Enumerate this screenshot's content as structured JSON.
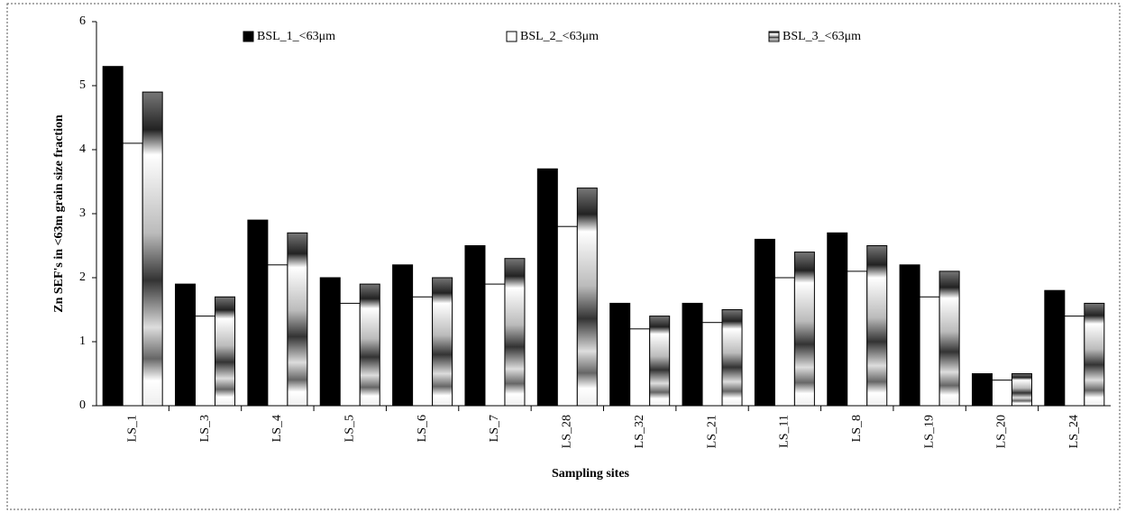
{
  "chart_data": {
    "type": "bar",
    "y_label": "Zn SEF's in <63m grain size fraction",
    "x_label": "Sampling sites",
    "categories": [
      "LS_1",
      "LS_3",
      "LS_4",
      "LS_5",
      "LS_6",
      "LS_7",
      "LS_28",
      "LS_32",
      "LS_21",
      "LS_11",
      "LS_8",
      "LS_19",
      "LS_20",
      "LS_24"
    ],
    "series": [
      {
        "name": "BSL_1_<63μm",
        "color": "#000000",
        "values": [
          5.3,
          1.9,
          2.9,
          2.0,
          2.2,
          2.5,
          3.7,
          1.6,
          1.6,
          2.6,
          2.7,
          2.2,
          0.5,
          1.8
        ]
      },
      {
        "name": "BSL_2_<63μm",
        "color": "#ffffff",
        "values": [
          4.1,
          1.4,
          2.2,
          1.6,
          1.7,
          1.9,
          2.8,
          1.2,
          1.3,
          2.0,
          2.1,
          1.7,
          0.4,
          1.4
        ]
      },
      {
        "name": "BSL_3_<63μm",
        "color": "#808080",
        "values": [
          4.9,
          1.7,
          2.7,
          1.9,
          2.0,
          2.3,
          3.4,
          1.4,
          1.5,
          2.4,
          2.5,
          2.1,
          0.5,
          1.6
        ]
      }
    ],
    "ylim": [
      0,
      6
    ],
    "yticks": [
      0,
      1,
      2,
      3,
      4,
      5,
      6
    ],
    "grid": false
  }
}
